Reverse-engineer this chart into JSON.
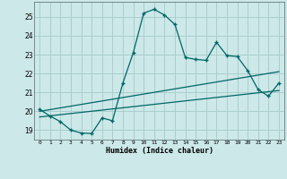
{
  "title": "",
  "xlabel": "Humidex (Indice chaleur)",
  "background_color": "#cce8e8",
  "grid_color": "#aacece",
  "line_color": "#006666",
  "xlim": [
    -0.5,
    23.5
  ],
  "ylim": [
    18.5,
    25.8
  ],
  "yticks": [
    19,
    20,
    21,
    22,
    23,
    24,
    25
  ],
  "xticks": [
    0,
    1,
    2,
    3,
    4,
    5,
    6,
    7,
    8,
    9,
    10,
    11,
    12,
    13,
    14,
    15,
    16,
    17,
    18,
    19,
    20,
    21,
    22,
    23
  ],
  "line1_x": [
    0,
    1,
    2,
    3,
    4,
    5,
    6,
    7,
    8,
    9,
    10,
    11,
    12,
    13,
    14,
    15,
    16,
    17,
    18,
    19,
    20,
    21,
    22,
    23
  ],
  "line1_y": [
    20.1,
    19.75,
    19.45,
    19.0,
    18.85,
    18.82,
    19.65,
    19.5,
    21.5,
    23.1,
    25.2,
    25.4,
    25.1,
    24.6,
    22.85,
    22.75,
    22.7,
    23.65,
    22.95,
    22.9,
    22.15,
    21.15,
    20.8,
    21.5
  ],
  "line2_x": [
    0,
    23
  ],
  "line2_y": [
    19.7,
    21.1
  ],
  "line3_x": [
    0,
    23
  ],
  "line3_y": [
    20.0,
    22.1
  ]
}
